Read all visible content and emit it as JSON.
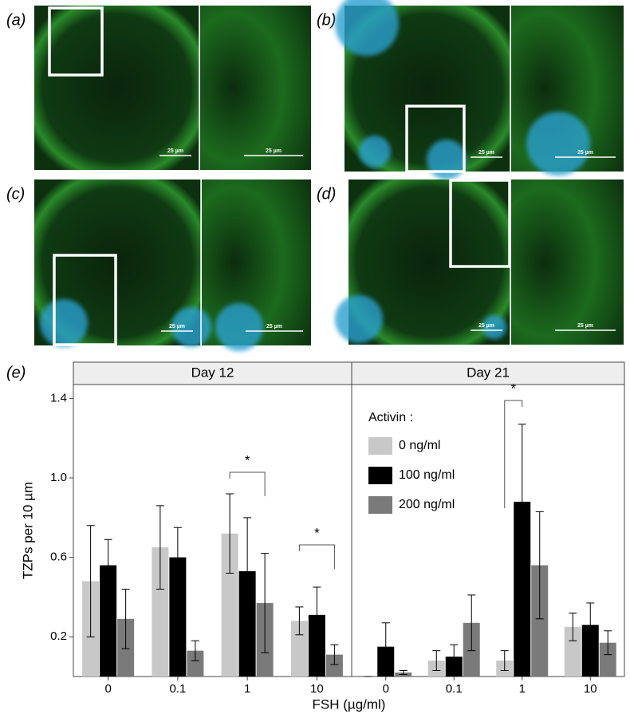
{
  "panels": [
    {
      "label": "(a)",
      "scale_bars": [
        "25 µm",
        "25 µm"
      ]
    },
    {
      "label": "(b)",
      "scale_bars": [
        "25 µm",
        "25 µm"
      ]
    },
    {
      "label": "(c)",
      "scale_bars": [
        "25 µm",
        "25 µm"
      ]
    },
    {
      "label": "(d)",
      "scale_bars": [
        "25 µm",
        "25 µm"
      ]
    }
  ],
  "chart_data": {
    "type": "bar",
    "label": "(e)",
    "x_label": "FSH (µg/ml)",
    "y_label": "TZPs per 10 µm",
    "categories": [
      "0",
      "0.1",
      "1",
      "10"
    ],
    "ylim": [
      0,
      1.47
    ],
    "yticks": [
      0.2,
      0.6,
      {
        "value": 1,
        "label": "1.0"
      },
      1.4
    ],
    "legend": {
      "title": "Activin :"
    },
    "series": [
      {
        "name": "0 ng/ml",
        "color": "#c8c8c8"
      },
      {
        "name": "100 ng/ml",
        "color": "#000000"
      },
      {
        "name": "200 ng/ml",
        "color": "#7a7a7a"
      }
    ],
    "facets": [
      {
        "title": "Day 12",
        "values": [
          [
            0.48,
            0.65,
            0.72,
            0.28
          ],
          [
            0.56,
            0.6,
            0.53,
            0.31
          ],
          [
            0.29,
            0.13,
            0.37,
            0.11
          ]
        ],
        "errors": [
          [
            0.28,
            0.21,
            0.2,
            0.07
          ],
          [
            0.13,
            0.15,
            0.27,
            0.14
          ],
          [
            0.15,
            0.05,
            0.25,
            0.05
          ]
        ]
      },
      {
        "title": "Day 21",
        "values": [
          [
            0,
            0.08,
            0.08,
            0.25
          ],
          [
            0.15,
            0.1,
            0.88,
            0.26
          ],
          [
            0.02,
            0.27,
            0.56,
            0.17
          ]
        ],
        "errors": [
          [
            0,
            0.05,
            0.05,
            0.07
          ],
          [
            0.12,
            0.06,
            0.39,
            0.11
          ],
          [
            0.01,
            0.14,
            0.27,
            0.06
          ]
        ]
      }
    ],
    "annotations": [
      {
        "text": "*"
      },
      {
        "text": "*"
      },
      {
        "text": "*"
      }
    ]
  }
}
